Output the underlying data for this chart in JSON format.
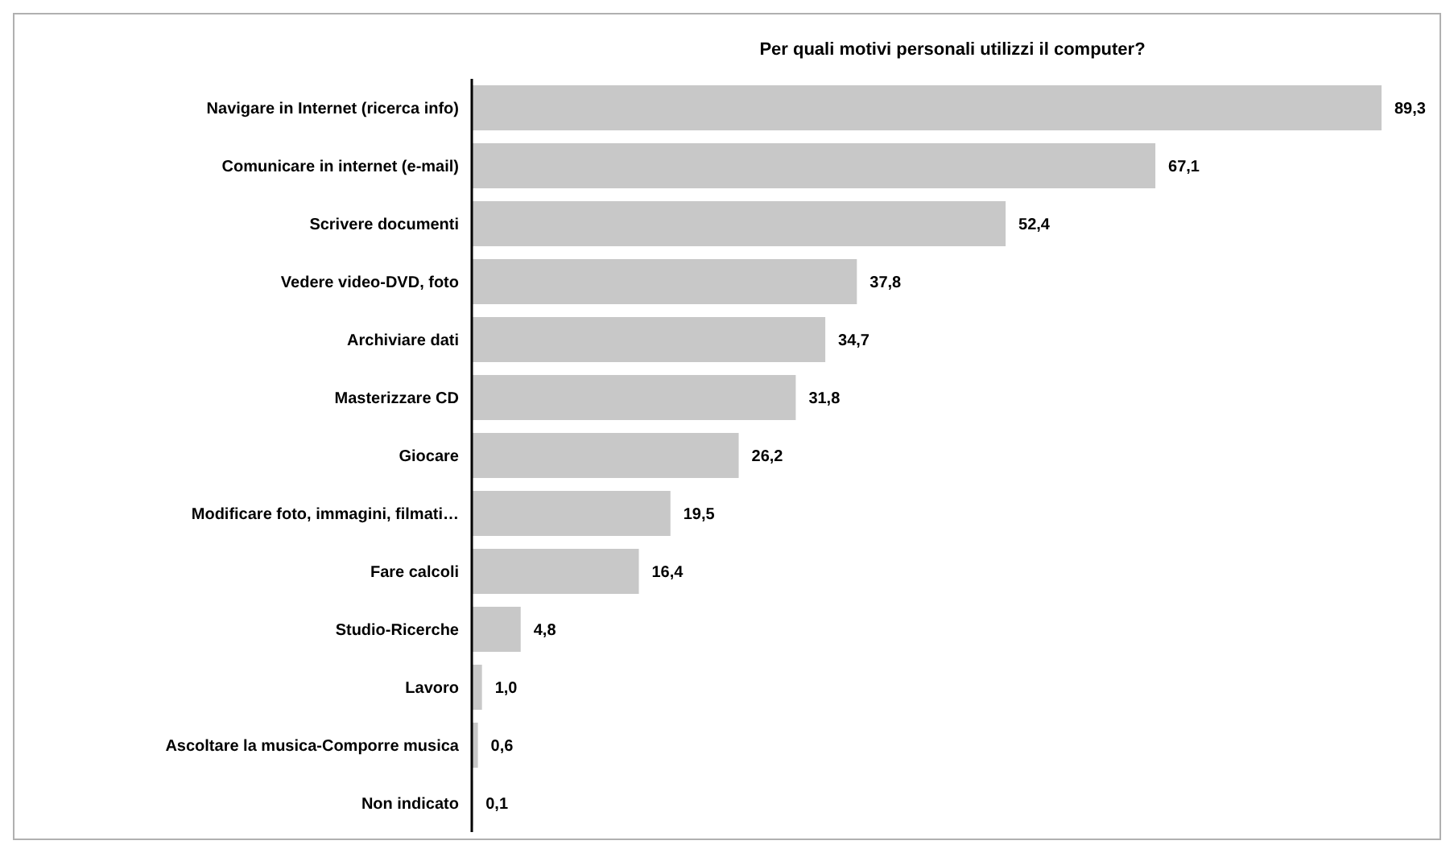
{
  "chart_data": {
    "type": "bar",
    "orientation": "horizontal",
    "title": "Per quali motivi personali utilizzi il computer?",
    "categories": [
      "Navigare in Internet (ricerca info)",
      "Comunicare in internet (e-mail)",
      "Scrivere documenti",
      "Vedere video-DVD, foto",
      "Archiviare dati",
      "Masterizzare CD",
      "Giocare",
      "Modificare foto, immagini, filmati…",
      "Fare calcoli",
      "Studio-Ricerche",
      "Lavoro",
      "Ascoltare la musica-Comporre musica",
      "Non indicato"
    ],
    "values": [
      89.3,
      67.1,
      52.4,
      37.8,
      34.7,
      31.8,
      26.2,
      19.5,
      16.4,
      4.8,
      1.0,
      0.6,
      0.1
    ],
    "value_labels": [
      "89,3",
      "67,1",
      "52,4",
      "37,8",
      "34,7",
      "31,8",
      "26,2",
      "19,5",
      "16,4",
      "4,8",
      "1,0",
      "0,6",
      "0,1"
    ],
    "color": "#c8c8c8",
    "grid": false,
    "legend": false
  }
}
